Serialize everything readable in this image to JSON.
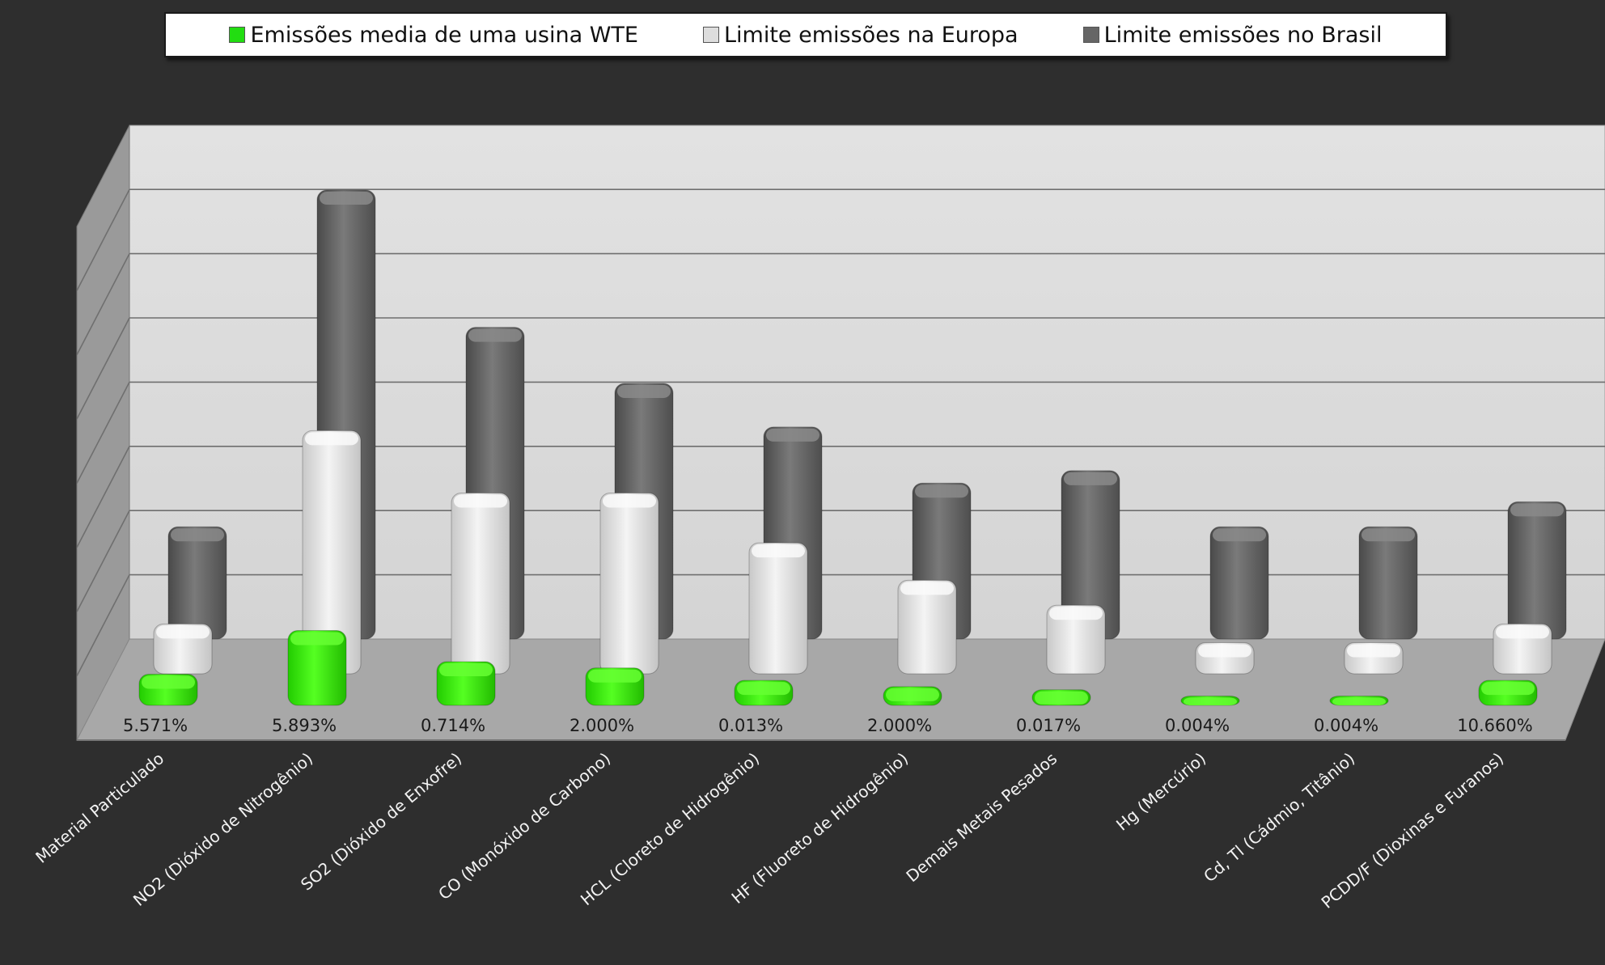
{
  "chart_data": {
    "type": "bar",
    "categories": [
      "Material Particulado",
      "NO2 (Dióxido de Nitrogênio)",
      "SO2 (Dióxido de Enxofre)",
      "CO (Monóxido de Carbono)",
      "HCL (Cloreto de Hidrogênio)",
      "HF (Fluoreto de Hidrogênio)",
      "Demais Metais Pesados",
      "Hg (Mercúrio)",
      "Cd, Tl (Cádmio, Titânio)",
      "PCDD/F (Dioxinas e Furanos)"
    ],
    "data_labels": [
      "5.571%",
      "5.893%",
      "0.714%",
      "2.000%",
      "0.013%",
      "2.000%",
      "0.017%",
      "0.004%",
      "0.004%",
      "10.660%"
    ],
    "series": [
      {
        "name": "Emissões media de uma usina WTE",
        "color": "#33ee11",
        "values": [
          0.5,
          1.2,
          0.7,
          0.6,
          0.4,
          0.3,
          0.25,
          0.15,
          0.15,
          0.4
        ]
      },
      {
        "name": "Limite emissões na Europa",
        "color": "#e4e4e4",
        "values": [
          0.8,
          3.9,
          2.9,
          2.9,
          2.1,
          1.5,
          1.1,
          0.5,
          0.5,
          0.8
        ]
      },
      {
        "name": "Limite emissões no Brasil",
        "color": "#6e6e6e",
        "values": [
          1.8,
          7.2,
          5.0,
          4.1,
          3.4,
          2.5,
          2.7,
          1.8,
          1.8,
          2.2
        ]
      }
    ],
    "ylim": [
      0,
      8
    ],
    "grid": true,
    "legend_position": "top",
    "xlabel": "",
    "ylabel": ""
  }
}
